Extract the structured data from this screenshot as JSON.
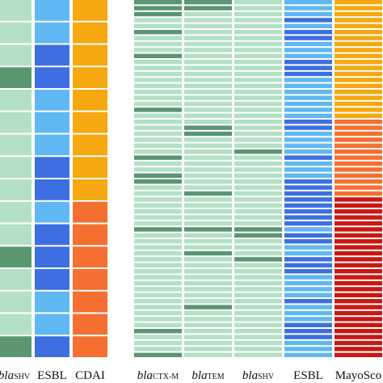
{
  "colors": {
    "gene_present": "#5a9670",
    "gene_absent": "#b4e0c4",
    "esbl_light": "#60b8f2",
    "esbl_dark": "#3d6fe0",
    "cdai_low": "#f5a80f",
    "cdai_high": "#f56f30",
    "mayo_low": "#f5a80f",
    "mayo_mid": "#f56f30",
    "mayo_high": "#c81812"
  },
  "chart_data": [
    {
      "type": "heatmap",
      "panel": "left",
      "rows": 16,
      "columns": [
        {
          "label_main": "bla",
          "label_sub": "SHV",
          "italic_main": true,
          "cells": [
            0,
            0,
            0,
            1,
            0,
            0,
            0,
            0,
            0,
            0,
            0,
            1,
            0,
            0,
            0,
            1
          ]
        },
        {
          "label_main": "ESBL",
          "label_sub": "",
          "cells": [
            0,
            0,
            1,
            1,
            0,
            0,
            0,
            1,
            1,
            0,
            1,
            1,
            1,
            0,
            0,
            1
          ]
        },
        {
          "label_main": "CDAI",
          "label_sub": "",
          "cells": [
            0,
            0,
            0,
            0,
            0,
            0,
            0,
            0,
            0,
            1,
            1,
            1,
            1,
            1,
            1,
            1
          ]
        }
      ]
    },
    {
      "type": "heatmap",
      "panel": "right",
      "rows": 60,
      "columns": [
        {
          "label_main": "bla",
          "label_sub": "CTX-M",
          "italic_main": true,
          "cells": [
            1,
            1,
            1,
            0,
            0,
            1,
            0,
            0,
            0,
            1,
            0,
            0,
            0,
            0,
            0,
            0,
            0,
            0,
            1,
            0,
            0,
            0,
            0,
            0,
            0,
            0,
            1,
            0,
            0,
            1,
            1,
            0,
            0,
            0,
            0,
            0,
            0,
            0,
            1,
            0,
            0,
            0,
            0,
            0,
            0,
            0,
            0,
            0,
            0,
            0,
            0,
            0,
            0,
            0,
            0,
            1,
            0,
            0,
            0,
            1
          ]
        },
        {
          "label_main": "bla",
          "label_sub": "TEM",
          "italic_main": true,
          "cells": [
            1,
            1,
            0,
            0,
            0,
            0,
            0,
            0,
            0,
            0,
            0,
            0,
            0,
            0,
            0,
            0,
            0,
            0,
            0,
            0,
            0,
            1,
            1,
            0,
            0,
            0,
            0,
            0,
            0,
            0,
            0,
            0,
            1,
            0,
            0,
            0,
            0,
            0,
            1,
            0,
            0,
            0,
            1,
            0,
            0,
            0,
            0,
            0,
            0,
            0,
            0,
            1,
            0,
            0,
            0,
            0,
            0,
            0,
            0,
            0
          ]
        },
        {
          "label_main": "bla",
          "label_sub": "SHV",
          "italic_main": true,
          "cells": [
            0,
            0,
            0,
            0,
            0,
            0,
            0,
            0,
            0,
            0,
            0,
            0,
            0,
            0,
            0,
            0,
            0,
            0,
            0,
            0,
            0,
            0,
            0,
            0,
            0,
            1,
            0,
            0,
            0,
            0,
            0,
            0,
            0,
            0,
            0,
            0,
            0,
            0,
            1,
            1,
            0,
            0,
            0,
            1,
            0,
            0,
            0,
            0,
            0,
            0,
            0,
            0,
            0,
            0,
            0,
            0,
            0,
            0,
            0,
            0
          ]
        },
        {
          "label_main": "ESBL",
          "label_sub": "",
          "cells": [
            0,
            0,
            0,
            1,
            0,
            1,
            1,
            0,
            0,
            0,
            1,
            1,
            1,
            0,
            0,
            0,
            0,
            0,
            0,
            0,
            1,
            1,
            0,
            0,
            0,
            0,
            1,
            0,
            0,
            0,
            1,
            1,
            1,
            1,
            1,
            1,
            1,
            1,
            0,
            1,
            1,
            0,
            0,
            1,
            1,
            1,
            0,
            0,
            0,
            0,
            1,
            0,
            0,
            0,
            1,
            1,
            1,
            0,
            0,
            0
          ]
        },
        {
          "label_main": "MayoSco",
          "label_sub": "",
          "cells": [
            0,
            0,
            0,
            0,
            0,
            0,
            0,
            0,
            0,
            0,
            0,
            0,
            0,
            0,
            0,
            0,
            0,
            0,
            0,
            0,
            1,
            1,
            1,
            1,
            1,
            1,
            1,
            1,
            1,
            1,
            1,
            1,
            1,
            2,
            2,
            2,
            2,
            2,
            2,
            2,
            2,
            2,
            2,
            2,
            2,
            2,
            2,
            2,
            2,
            2,
            2,
            2,
            2,
            2,
            2,
            2,
            2,
            2,
            2,
            2
          ]
        }
      ]
    }
  ]
}
